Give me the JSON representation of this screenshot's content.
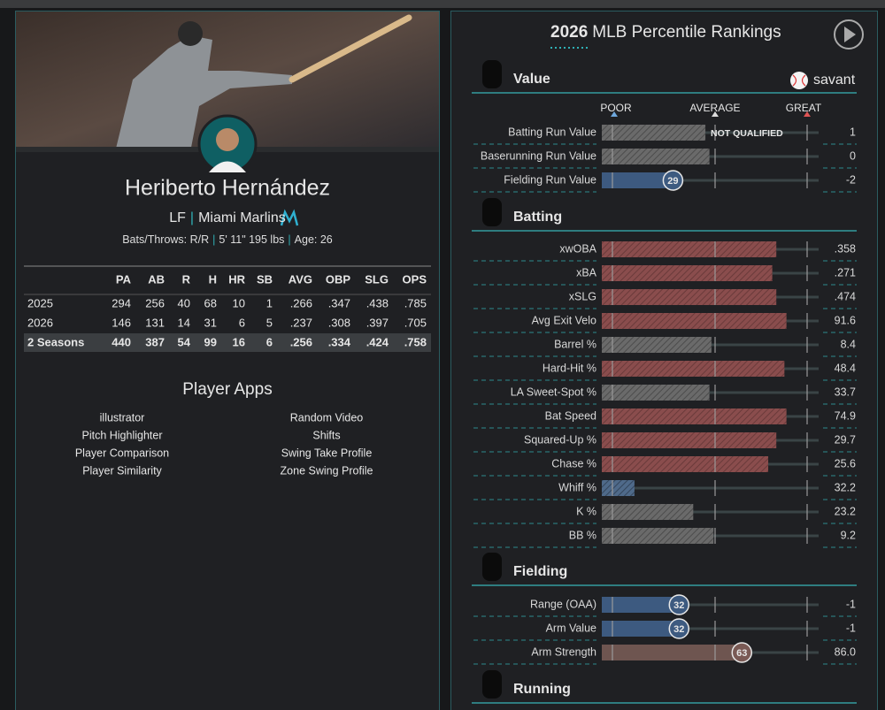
{
  "player": {
    "name": "Heriberto Hernández",
    "position": "LF",
    "separator": "|",
    "team": "Miami Marlins",
    "bats_throws": "Bats/Throws: R/R",
    "height_weight": "5' 11\" 195 lbs",
    "age": "Age: 26",
    "stats_table": {
      "headers": [
        "PA",
        "AB",
        "R",
        "H",
        "HR",
        "SB",
        "AVG",
        "OBP",
        "SLG",
        "OPS"
      ],
      "rows": [
        [
          "2025",
          "294",
          "256",
          "40",
          "68",
          "10",
          "1",
          ".266",
          ".347",
          ".438",
          ".785"
        ],
        [
          "2026",
          "146",
          "131",
          "14",
          "31",
          "6",
          "5",
          ".237",
          ".308",
          ".397",
          ".705"
        ],
        [
          "2 Seasons",
          "440",
          "387",
          "54",
          "99",
          "16",
          "6",
          ".256",
          ".334",
          ".424",
          ".758"
        ]
      ]
    },
    "apps_title": "Player Apps",
    "apps_left": [
      "illustrator",
      "Pitch Highlighter",
      "Player Comparison",
      "Player Similarity"
    ],
    "apps_right": [
      "Random Video",
      "Shifts",
      "Swing Take Profile",
      "Zone Swing Profile"
    ]
  },
  "rankings": {
    "title_year": "2026",
    "title_rest": "MLB Percentile Rankings",
    "brand": "savant",
    "scale": {
      "poor": "POOR",
      "average": "AVERAGE",
      "great": "GREAT"
    },
    "sections": [
      {
        "name": "Value",
        "rows": [
          {
            "label": "Batting Run Value",
            "bar": 45,
            "note": "NOT QUALIFIED",
            "value": "1"
          },
          {
            "label": "Baserunning Run Value",
            "bar": 47,
            "value": "0"
          },
          {
            "label": "Fielding Run Value",
            "percentile": 29,
            "value": "-2"
          }
        ]
      },
      {
        "name": "Batting",
        "rows": [
          {
            "label": "xwOBA",
            "bar": 80,
            "value": ".358"
          },
          {
            "label": "xBA",
            "bar": 78,
            "value": ".271"
          },
          {
            "label": "xSLG",
            "bar": 80,
            "value": ".474"
          },
          {
            "label": "Avg Exit Velo",
            "bar": 85,
            "value": "91.6"
          },
          {
            "label": "Barrel %",
            "bar": 48,
            "value": "8.4"
          },
          {
            "label": "Hard-Hit %",
            "bar": 84,
            "value": "48.4"
          },
          {
            "label": "LA Sweet-Spot %",
            "bar": 47,
            "value": "33.7"
          },
          {
            "label": "Bat Speed",
            "bar": 85,
            "value": "74.9"
          },
          {
            "label": "Squared-Up %",
            "bar": 80,
            "value": "29.7"
          },
          {
            "label": "Chase %",
            "bar": 76,
            "value": "25.6"
          },
          {
            "label": "Whiff %",
            "bar": 10,
            "value": "32.2"
          },
          {
            "label": "K %",
            "bar": 39,
            "value": "23.2"
          },
          {
            "label": "BB %",
            "bar": 49,
            "value": "9.2"
          }
        ]
      },
      {
        "name": "Fielding",
        "rows": [
          {
            "label": "Range (OAA)",
            "percentile": 32,
            "value": "-1"
          },
          {
            "label": "Arm Value",
            "percentile": 32,
            "value": "-1"
          },
          {
            "label": "Arm Strength",
            "percentile": 63,
            "value": "86.0"
          }
        ]
      },
      {
        "name": "Running",
        "rows": []
      }
    ]
  }
}
